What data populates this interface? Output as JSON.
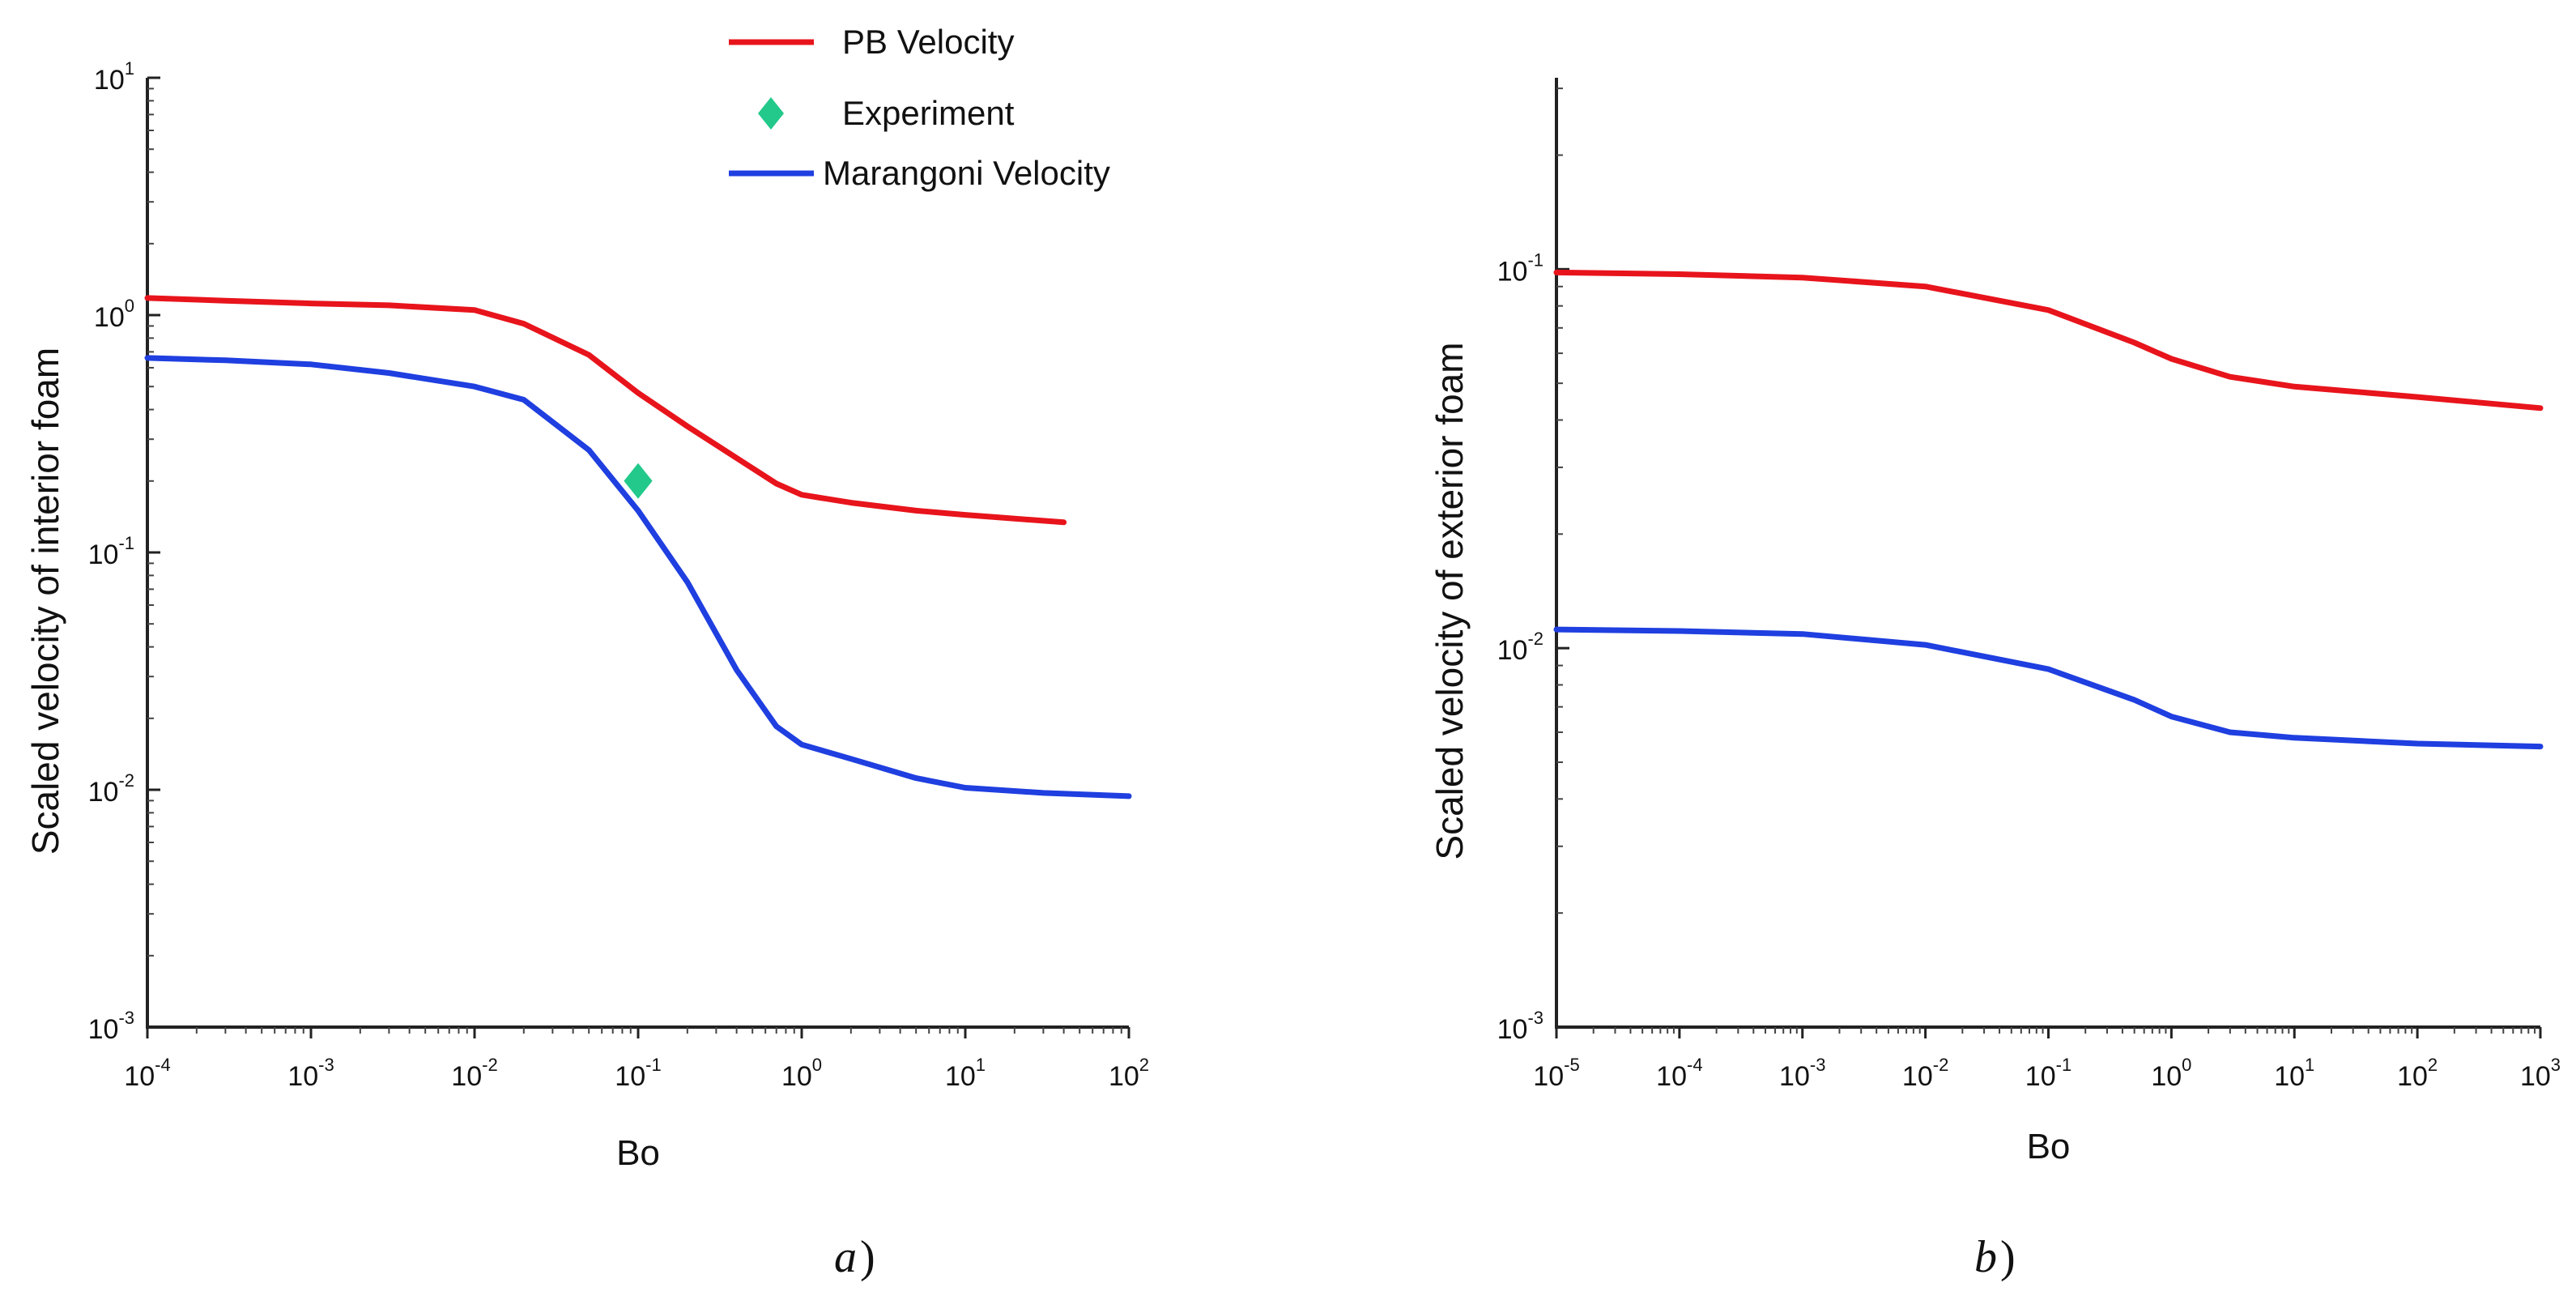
{
  "chart_data": [
    {
      "panel": "a",
      "caption": "a)",
      "caption_letter": "a",
      "caption_paren": ")",
      "type": "line",
      "x_scale": "log",
      "y_scale": "log",
      "xlabel": "Bo",
      "ylabel": "Scaled velocity of interior foam",
      "xlim": [
        0.0001,
        100
      ],
      "ylim": [
        0.001,
        10
      ],
      "x_ticks": [
        {
          "base": "10",
          "exp": "-4",
          "value": 0.0001
        },
        {
          "base": "10",
          "exp": "-3",
          "value": 0.001
        },
        {
          "base": "10",
          "exp": "-2",
          "value": 0.01
        },
        {
          "base": "10",
          "exp": "-1",
          "value": 0.1
        },
        {
          "base": "10",
          "exp": "0",
          "value": 1
        },
        {
          "base": "10",
          "exp": "1",
          "value": 10
        },
        {
          "base": "10",
          "exp": "2",
          "value": 100
        }
      ],
      "y_ticks": [
        {
          "base": "10",
          "exp": "-3",
          "value": 0.001
        },
        {
          "base": "10",
          "exp": "-2",
          "value": 0.01
        },
        {
          "base": "10",
          "exp": "-1",
          "value": 0.1
        },
        {
          "base": "10",
          "exp": "0",
          "value": 1
        },
        {
          "base": "10",
          "exp": "1",
          "value": 10
        }
      ],
      "legend": {
        "placement": "top-right",
        "entries": [
          {
            "label": "PB Velocity",
            "kind": "line",
            "color": "#e8141c"
          },
          {
            "label": "Experiment",
            "kind": "diamond",
            "color": "#22c98a"
          },
          {
            "label": "Marangoni Velocity",
            "kind": "line",
            "color": "#1f3fe0"
          }
        ]
      },
      "series": [
        {
          "name": "PB Velocity",
          "color": "#e8141c",
          "points": [
            [
              0.0001,
              1.18
            ],
            [
              0.0003,
              1.15
            ],
            [
              0.001,
              1.12
            ],
            [
              0.003,
              1.1
            ],
            [
              0.01,
              1.05
            ],
            [
              0.02,
              0.92
            ],
            [
              0.05,
              0.68
            ],
            [
              0.1,
              0.47
            ],
            [
              0.2,
              0.34
            ],
            [
              0.4,
              0.25
            ],
            [
              0.7,
              0.195
            ],
            [
              1,
              0.175
            ],
            [
              2,
              0.162
            ],
            [
              5,
              0.15
            ],
            [
              10,
              0.144
            ],
            [
              40,
              0.134
            ]
          ]
        },
        {
          "name": "Marangoni Velocity",
          "color": "#1f3fe0",
          "points": [
            [
              0.0001,
              0.66
            ],
            [
              0.0003,
              0.645
            ],
            [
              0.001,
              0.62
            ],
            [
              0.003,
              0.57
            ],
            [
              0.01,
              0.5
            ],
            [
              0.02,
              0.44
            ],
            [
              0.05,
              0.27
            ],
            [
              0.1,
              0.15
            ],
            [
              0.2,
              0.075
            ],
            [
              0.4,
              0.032
            ],
            [
              0.7,
              0.0185
            ],
            [
              1,
              0.0155
            ],
            [
              2,
              0.0135
            ],
            [
              5,
              0.0112
            ],
            [
              10,
              0.0102
            ],
            [
              30,
              0.0097
            ],
            [
              100,
              0.0094
            ]
          ]
        },
        {
          "name": "Experiment",
          "color": "#22c98a",
          "marker": "diamond",
          "points": [
            [
              0.1,
              0.2
            ]
          ]
        }
      ]
    },
    {
      "panel": "b",
      "caption": "b)",
      "caption_letter": "b",
      "caption_paren": ")",
      "type": "line",
      "x_scale": "log",
      "y_scale": "log",
      "xlabel": "Bo",
      "ylabel": "Scaled velocity of exterior foam",
      "xlim": [
        1e-05,
        1000
      ],
      "ylim": [
        0.001,
        0.32
      ],
      "x_ticks": [
        {
          "base": "10",
          "exp": "-5",
          "value": 1e-05
        },
        {
          "base": "10",
          "exp": "-4",
          "value": 0.0001
        },
        {
          "base": "10",
          "exp": "-3",
          "value": 0.001
        },
        {
          "base": "10",
          "exp": "-2",
          "value": 0.01
        },
        {
          "base": "10",
          "exp": "-1",
          "value": 0.1
        },
        {
          "base": "10",
          "exp": "0",
          "value": 1
        },
        {
          "base": "10",
          "exp": "1",
          "value": 10
        },
        {
          "base": "10",
          "exp": "2",
          "value": 100
        },
        {
          "base": "10",
          "exp": "3",
          "value": 1000
        }
      ],
      "y_ticks": [
        {
          "base": "10",
          "exp": "-3",
          "value": 0.001
        },
        {
          "base": "10",
          "exp": "-2",
          "value": 0.01
        },
        {
          "base": "10",
          "exp": "-1",
          "value": 0.1
        }
      ],
      "series": [
        {
          "name": "PB Velocity",
          "color": "#e8141c",
          "points": [
            [
              1e-05,
              0.098
            ],
            [
              0.0001,
              0.097
            ],
            [
              0.001,
              0.095
            ],
            [
              0.01,
              0.09
            ],
            [
              0.1,
              0.078
            ],
            [
              0.5,
              0.064
            ],
            [
              1,
              0.058
            ],
            [
              3,
              0.052
            ],
            [
              10,
              0.049
            ],
            [
              100,
              0.046
            ],
            [
              1000,
              0.043
            ]
          ]
        },
        {
          "name": "Marangoni Velocity",
          "color": "#1f3fe0",
          "points": [
            [
              1e-05,
              0.0112
            ],
            [
              0.0001,
              0.0111
            ],
            [
              0.001,
              0.0109
            ],
            [
              0.01,
              0.0102
            ],
            [
              0.1,
              0.0088
            ],
            [
              0.5,
              0.0073
            ],
            [
              1,
              0.0066
            ],
            [
              3,
              0.006
            ],
            [
              10,
              0.0058
            ],
            [
              100,
              0.0056
            ],
            [
              1000,
              0.0055
            ]
          ]
        }
      ]
    }
  ]
}
